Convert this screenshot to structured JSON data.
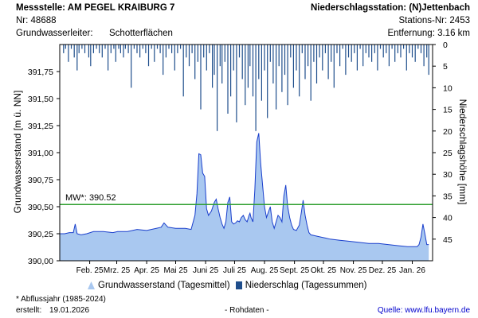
{
  "header": {
    "station_title": "Messstelle: AM PEGEL KRAIBURG 7",
    "station_nr": "Nr: 48688",
    "aquifer_label": "Grundwasserleiter:",
    "aquifer_value": "Schotterflächen",
    "precip_station": "Niederschlagsstation: (N)Jettenbach",
    "precip_nr": "Stations-Nr: 2453",
    "distance": "Entfernung: 3.16 km"
  },
  "footer": {
    "note": "* Abflussjahr (1985-2024)",
    "created_label": "erstellt:",
    "created_date": "19.01.2026",
    "raw": "- Rohdaten -",
    "source": "Quelle: www.lfu.bayern.de"
  },
  "chart_data": {
    "type": "area",
    "ylabel_left": "Grundwasserstand [m ü. NN]",
    "ylabel_right": "Niederschlagshöhe [mm]",
    "y_left_ticks": [
      "391,75",
      "391,50",
      "391,25",
      "391,00",
      "390,75",
      "390,50",
      "390,25",
      "390,00"
    ],
    "y_left_values": [
      391.75,
      391.5,
      391.25,
      391.0,
      390.75,
      390.5,
      390.25,
      390.0
    ],
    "ylim_left": [
      390.0,
      392.0
    ],
    "y_right_ticks": [
      "0",
      "5",
      "10",
      "15",
      "20",
      "25",
      "30",
      "35",
      "40",
      "45"
    ],
    "y_right_values": [
      0,
      5,
      10,
      15,
      20,
      25,
      30,
      35,
      40,
      45
    ],
    "ylim_right": [
      0,
      50
    ],
    "x_ticks": [
      "Feb. 25",
      "Mrz. 25",
      "Apr. 25",
      "Mai 25",
      "Juni 25",
      "Juli 25",
      "Aug. 25",
      "Sept. 25",
      "Okt. 25",
      "Nov. 25",
      "Dez. 25",
      "Jan. 26"
    ],
    "x_tick_days": [
      31,
      59,
      90,
      120,
      151,
      181,
      212,
      243,
      273,
      304,
      334,
      365
    ],
    "x_range_days": [
      0,
      386
    ],
    "mean_line": {
      "label": "MW*: 390.52",
      "value": 390.52,
      "color": "#2e9e2e"
    },
    "legend": [
      {
        "name": "Grundwasserstand (Tagesmittel)",
        "color": "#a9c8f0"
      },
      {
        "name": "Niederschlag (Tagessummen)",
        "color": "#1f4e8c"
      }
    ],
    "series": [
      {
        "name": "Grundwasserstand (Tagesmittel)",
        "x": [
          0,
          5,
          10,
          14,
          16,
          18,
          22,
          28,
          35,
          45,
          55,
          60,
          70,
          80,
          90,
          100,
          105,
          108,
          112,
          120,
          125,
          130,
          136,
          140,
          142,
          144,
          146,
          148,
          150,
          152,
          154,
          157,
          160,
          162,
          164,
          166,
          168,
          170,
          172,
          174,
          176,
          178,
          180,
          182,
          184,
          186,
          188,
          190,
          192,
          194,
          196,
          197,
          198,
          200,
          202,
          204,
          206,
          208,
          210,
          212,
          214,
          216,
          218,
          220,
          222,
          224,
          226,
          228,
          230,
          232,
          234,
          236,
          238,
          240,
          242,
          245,
          248,
          250,
          252,
          254,
          256,
          258,
          260,
          265,
          270,
          275,
          280,
          290,
          300,
          310,
          320,
          330,
          340,
          350,
          360,
          365,
          370,
          372,
          374,
          376,
          378,
          380,
          382
        ],
        "values": [
          390.25,
          390.25,
          390.26,
          390.26,
          390.34,
          390.25,
          390.24,
          390.25,
          390.27,
          390.27,
          390.26,
          390.27,
          390.27,
          390.29,
          390.28,
          390.3,
          390.31,
          390.35,
          390.31,
          390.3,
          390.3,
          390.3,
          390.29,
          390.42,
          390.62,
          390.99,
          390.98,
          390.81,
          390.78,
          390.48,
          390.42,
          390.46,
          390.54,
          390.57,
          390.48,
          390.4,
          390.34,
          390.3,
          390.36,
          390.54,
          390.59,
          390.36,
          390.34,
          390.35,
          390.37,
          390.36,
          390.4,
          390.42,
          390.38,
          390.36,
          390.42,
          390.44,
          390.4,
          390.36,
          390.66,
          391.1,
          391.18,
          390.9,
          390.7,
          390.5,
          390.4,
          390.45,
          390.5,
          390.36,
          390.3,
          390.36,
          390.42,
          390.4,
          390.36,
          390.6,
          390.7,
          390.5,
          390.4,
          390.33,
          390.29,
          390.28,
          390.33,
          390.44,
          390.56,
          390.42,
          390.33,
          390.26,
          390.24,
          390.23,
          390.22,
          390.21,
          390.2,
          390.19,
          390.18,
          390.17,
          390.16,
          390.16,
          390.15,
          390.14,
          390.13,
          390.13,
          390.13,
          390.15,
          390.22,
          390.34,
          390.25,
          390.15,
          390.15
        ]
      },
      {
        "name": "Niederschlag (Tagessummen)",
        "x": [
          4,
          6,
          9,
          12,
          15,
          18,
          20,
          23,
          26,
          30,
          32,
          35,
          38,
          41,
          44,
          47,
          50,
          53,
          56,
          58,
          61,
          63,
          66,
          68,
          71,
          74,
          77,
          80,
          83,
          86,
          89,
          92,
          95,
          98,
          101,
          104,
          107,
          110,
          113,
          116,
          119,
          122,
          125,
          128,
          131,
          134,
          137,
          140,
          143,
          146,
          149,
          152,
          155,
          158,
          160,
          163,
          166,
          168,
          171,
          174,
          177,
          180,
          183,
          186,
          189,
          192,
          195,
          197,
          200,
          203,
          206,
          209,
          212,
          215,
          218,
          221,
          224,
          227,
          230,
          233,
          236,
          239,
          242,
          245,
          248,
          251,
          254,
          257,
          260,
          263,
          266,
          269,
          272,
          275,
          278,
          281,
          284,
          287,
          290,
          293,
          296,
          299,
          302,
          305,
          308,
          311,
          314,
          317,
          320,
          323,
          326,
          329,
          332,
          335,
          338,
          341,
          344,
          347,
          350,
          353,
          356,
          359,
          362,
          365,
          368,
          371,
          374,
          377,
          380,
          382
        ],
        "values": [
          2,
          1,
          4,
          1,
          3,
          6,
          2,
          1,
          2,
          3,
          5,
          2,
          1,
          2,
          3,
          1,
          6,
          2,
          1,
          4,
          1,
          2,
          3,
          1,
          2,
          10,
          1,
          2,
          3,
          1,
          2,
          5,
          1,
          4,
          1,
          2,
          7,
          3,
          1,
          2,
          6,
          2,
          1,
          12,
          3,
          5,
          2,
          8,
          4,
          15,
          3,
          6,
          2,
          10,
          7,
          20,
          5,
          9,
          4,
          16,
          12,
          6,
          18,
          3,
          8,
          14,
          10,
          5,
          12,
          20,
          8,
          13,
          6,
          17,
          4,
          9,
          15,
          5,
          11,
          7,
          14,
          3,
          10,
          6,
          12,
          2,
          8,
          5,
          13,
          4,
          9,
          3,
          6,
          2,
          8,
          4,
          10,
          2,
          5,
          1,
          7,
          3,
          4,
          2,
          6,
          1,
          5,
          2,
          3,
          4,
          2,
          6,
          1,
          3,
          2,
          5,
          1,
          4,
          2,
          3,
          1,
          6,
          2,
          3,
          4,
          1,
          2,
          5,
          3,
          7
        ]
      }
    ]
  }
}
